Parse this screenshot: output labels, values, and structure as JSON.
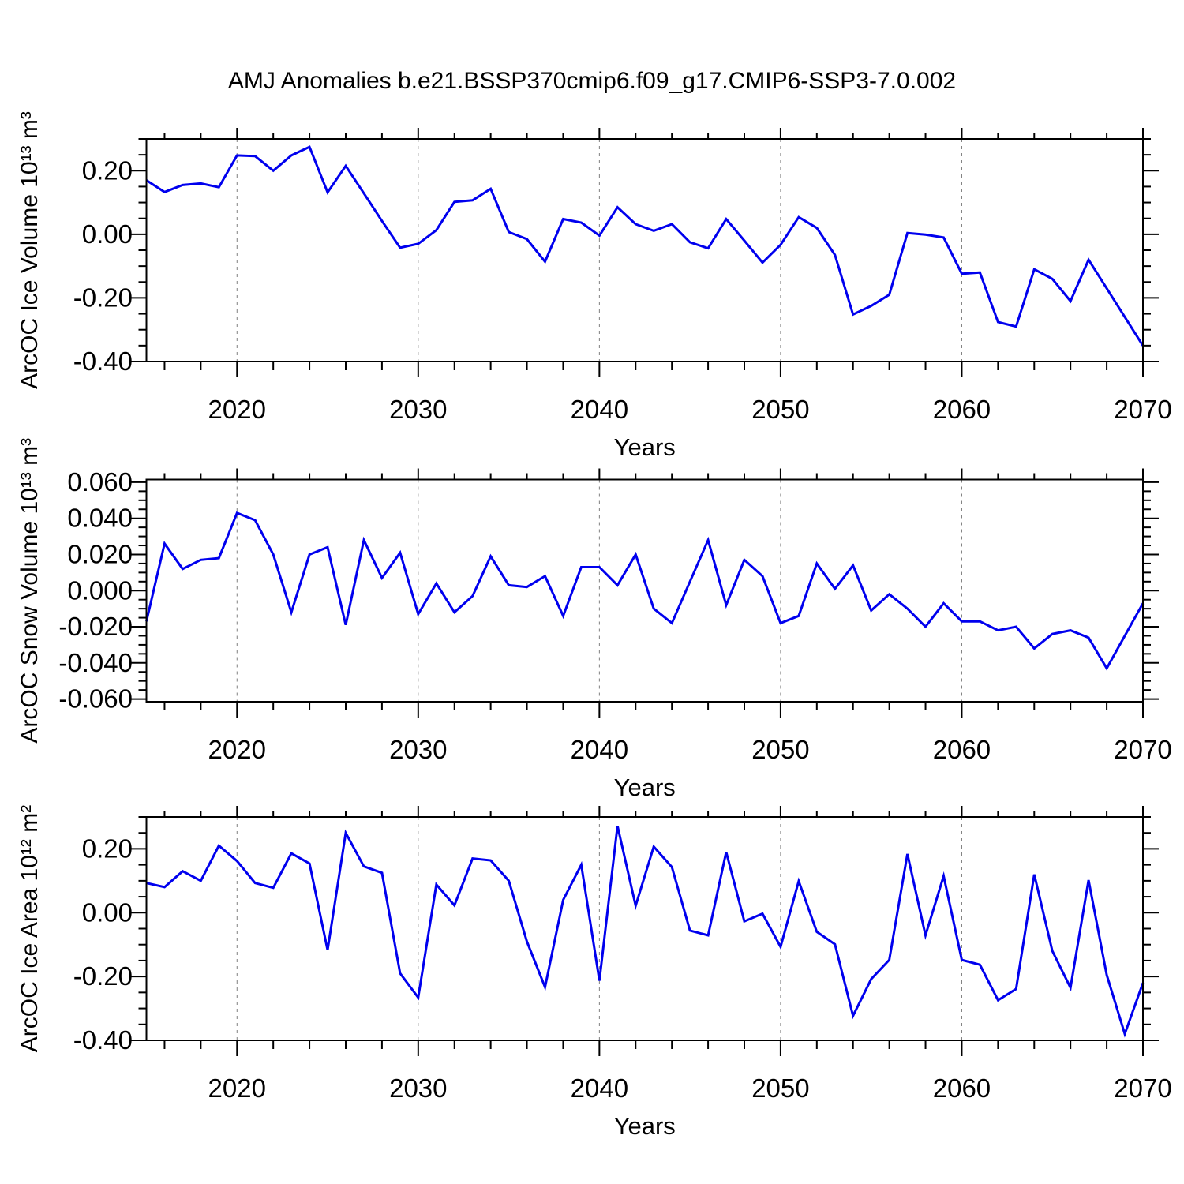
{
  "title": "AMJ Anomalies b.e21.BSSP370cmip6.f09_g17.CMIP6-SSP3-7.0.002",
  "chart_data": [
    {
      "id": "ice-volume",
      "type": "line",
      "title": "",
      "xlabel": "Years",
      "ylabel": "ArcOC Ice Volume 10¹³ m³",
      "line_color": "#0000EE",
      "grid_color": "#7f7f7f",
      "legend": "none",
      "grid_on": true,
      "xlim": [
        2015,
        2070
      ],
      "ylim": [
        -0.4,
        0.3
      ],
      "xticks_major": [
        2020,
        2030,
        2040,
        2050,
        2060,
        2070
      ],
      "xtick_minor_step": 2,
      "grid_years": [
        2020,
        2030,
        2040,
        2050,
        2060
      ],
      "yticks_major": [
        0.2,
        0.0,
        -0.2,
        -0.4
      ],
      "ytick_labels": [
        "0.20",
        "0.00",
        "-0.20",
        "-0.40"
      ],
      "ytick_minor_step": 0.05,
      "years": [
        2015,
        2016,
        2017,
        2018,
        2019,
        2020,
        2021,
        2022,
        2023,
        2024,
        2025,
        2026,
        2027,
        2028,
        2029,
        2030,
        2031,
        2032,
        2033,
        2034,
        2035,
        2036,
        2037,
        2038,
        2039,
        2040,
        2041,
        2042,
        2043,
        2044,
        2045,
        2046,
        2047,
        2048,
        2049,
        2050,
        2051,
        2052,
        2053,
        2054,
        2055,
        2056,
        2057,
        2058,
        2059,
        2060,
        2061,
        2062,
        2063,
        2064,
        2065,
        2066,
        2067,
        2068,
        2069,
        2070
      ],
      "values": [
        0.17,
        0.133,
        0.155,
        0.16,
        0.148,
        0.248,
        0.246,
        0.2,
        0.248,
        0.275,
        0.132,
        0.215,
        0.129,
        0.042,
        -0.042,
        -0.03,
        0.013,
        0.102,
        0.107,
        0.143,
        0.007,
        -0.015,
        -0.086,
        0.048,
        0.037,
        -0.004,
        0.085,
        0.032,
        0.011,
        0.032,
        -0.025,
        -0.044,
        0.048,
        -0.02,
        -0.089,
        -0.033,
        0.054,
        0.02,
        -0.065,
        -0.252,
        -0.225,
        -0.19,
        0.004,
        -0.001,
        -0.01,
        -0.124,
        -0.12,
        -0.276,
        -0.29,
        -0.11,
        -0.14,
        -0.21,
        -0.08,
        -0.17,
        -0.26,
        -0.35
      ]
    },
    {
      "id": "snow-volume",
      "type": "line",
      "title": "",
      "xlabel": "Years",
      "ylabel": "ArcOC Snow Volume 10¹³ m³",
      "line_color": "#0000EE",
      "grid_color": "#7f7f7f",
      "legend": "none",
      "grid_on": true,
      "xlim": [
        2015,
        2070
      ],
      "ylim": [
        -0.0615,
        0.0615
      ],
      "xticks_major": [
        2020,
        2030,
        2040,
        2050,
        2060,
        2070
      ],
      "xtick_minor_step": 2,
      "grid_years": [
        2020,
        2030,
        2040,
        2050,
        2060
      ],
      "yticks_major": [
        0.06,
        0.04,
        0.02,
        0.0,
        -0.02,
        -0.04,
        -0.06
      ],
      "ytick_labels": [
        "0.060",
        "0.040",
        "0.020",
        "0.000",
        "-0.020",
        "-0.040",
        "-0.060"
      ],
      "ytick_minor_step": 0.005,
      "years": [
        2015,
        2016,
        2017,
        2018,
        2019,
        2020,
        2021,
        2022,
        2023,
        2024,
        2025,
        2026,
        2027,
        2028,
        2029,
        2030,
        2031,
        2032,
        2033,
        2034,
        2035,
        2036,
        2037,
        2038,
        2039,
        2040,
        2041,
        2042,
        2043,
        2044,
        2045,
        2046,
        2047,
        2048,
        2049,
        2050,
        2051,
        2052,
        2053,
        2054,
        2055,
        2056,
        2057,
        2058,
        2059,
        2060,
        2061,
        2062,
        2063,
        2064,
        2065,
        2066,
        2067,
        2068,
        2069,
        2070
      ],
      "values": [
        -0.017,
        0.026,
        0.012,
        0.017,
        0.018,
        0.043,
        0.039,
        0.02,
        -0.012,
        0.02,
        0.024,
        -0.019,
        0.028,
        0.007,
        0.021,
        -0.013,
        0.004,
        -0.012,
        -0.003,
        0.019,
        0.003,
        0.002,
        0.008,
        -0.014,
        0.013,
        0.013,
        0.003,
        0.02,
        -0.01,
        -0.018,
        0.005,
        0.028,
        -0.008,
        0.017,
        0.008,
        -0.018,
        -0.014,
        0.015,
        0.001,
        0.014,
        -0.011,
        -0.002,
        -0.01,
        -0.02,
        -0.007,
        -0.017,
        -0.017,
        -0.022,
        -0.02,
        -0.032,
        -0.024,
        -0.022,
        -0.026,
        -0.043,
        -0.025,
        -0.007
      ]
    },
    {
      "id": "ice-area",
      "type": "line",
      "title": "",
      "xlabel": "Years",
      "ylabel": "ArcOC Ice Area 10¹² m²",
      "line_color": "#0000EE",
      "grid_color": "#7f7f7f",
      "legend": "none",
      "grid_on": true,
      "xlim": [
        2015,
        2070
      ],
      "ylim": [
        -0.4,
        0.3
      ],
      "xticks_major": [
        2020,
        2030,
        2040,
        2050,
        2060,
        2070
      ],
      "xtick_minor_step": 2,
      "grid_years": [
        2020,
        2030,
        2040,
        2050,
        2060
      ],
      "yticks_major": [
        0.2,
        0.0,
        -0.2,
        -0.4
      ],
      "ytick_labels": [
        "0.20",
        "0.00",
        "-0.20",
        "-0.40"
      ],
      "ytick_minor_step": 0.05,
      "years": [
        2015,
        2016,
        2017,
        2018,
        2019,
        2020,
        2021,
        2022,
        2023,
        2024,
        2025,
        2026,
        2027,
        2028,
        2029,
        2030,
        2031,
        2032,
        2033,
        2034,
        2035,
        2036,
        2037,
        2038,
        2039,
        2040,
        2041,
        2042,
        2043,
        2044,
        2045,
        2046,
        2047,
        2048,
        2049,
        2050,
        2051,
        2052,
        2053,
        2054,
        2055,
        2056,
        2057,
        2058,
        2059,
        2060,
        2061,
        2062,
        2063,
        2064,
        2065,
        2066,
        2067,
        2068,
        2069,
        2070
      ],
      "values": [
        0.093,
        0.08,
        0.13,
        0.1,
        0.21,
        0.162,
        0.093,
        0.078,
        0.186,
        0.154,
        -0.117,
        0.25,
        0.145,
        0.125,
        -0.19,
        -0.266,
        0.088,
        0.023,
        0.17,
        0.164,
        0.1,
        -0.09,
        -0.233,
        0.04,
        0.15,
        -0.213,
        0.272,
        0.022,
        0.207,
        0.143,
        -0.056,
        -0.071,
        0.19,
        -0.027,
        -0.003,
        -0.107,
        0.099,
        -0.06,
        -0.099,
        -0.323,
        -0.208,
        -0.148,
        0.184,
        -0.071,
        0.115,
        -0.148,
        -0.163,
        -0.274,
        -0.239,
        0.12,
        -0.12,
        -0.235,
        0.102,
        -0.195,
        -0.38,
        -0.22
      ]
    }
  ]
}
